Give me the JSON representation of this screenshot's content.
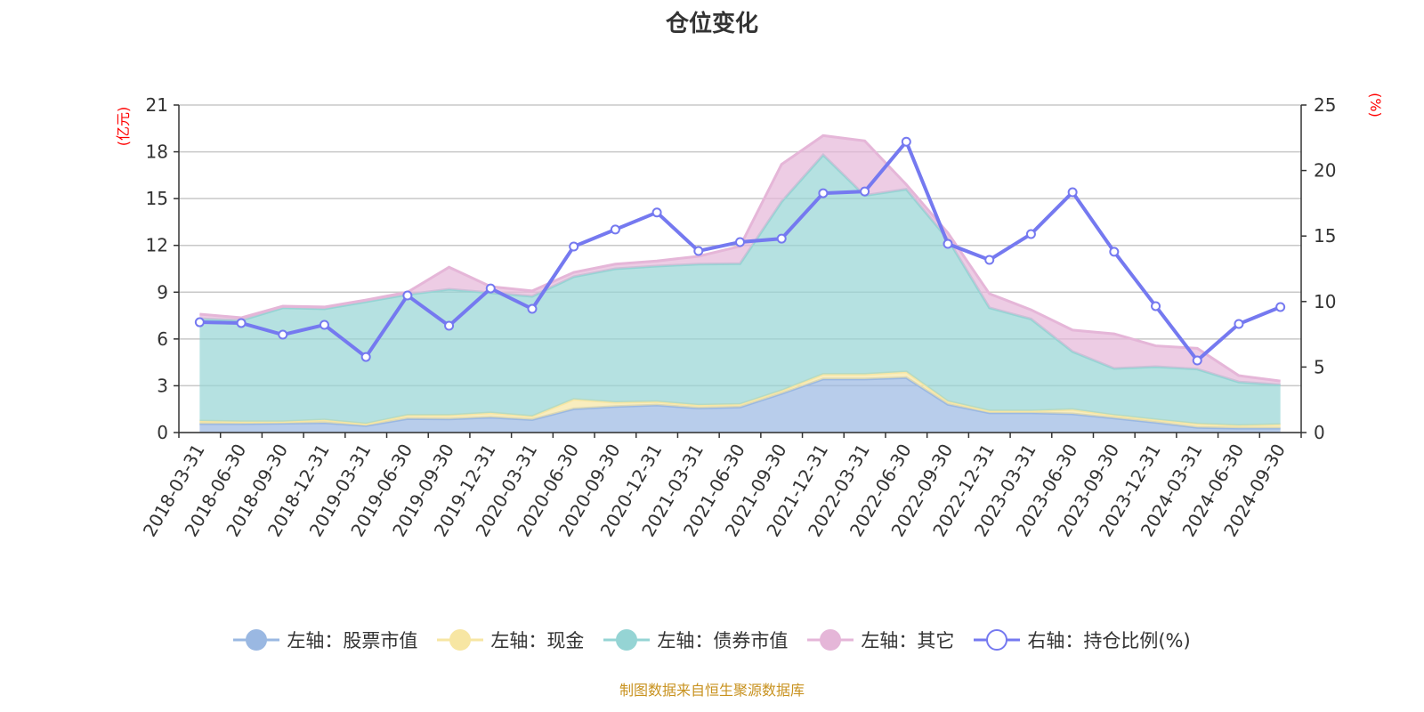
{
  "chart_data": {
    "type": "area",
    "title": "仓位变化",
    "left_axis": {
      "unit_label": "(亿元)",
      "range": [
        0,
        21
      ],
      "ticks": [
        0,
        3,
        6,
        9,
        12,
        15,
        18,
        21
      ]
    },
    "right_axis": {
      "unit_label": "(%)",
      "range": [
        0,
        25
      ],
      "ticks": [
        0,
        5,
        10,
        15,
        20,
        25
      ]
    },
    "grid": true,
    "legend_placement": "bottom",
    "categories": [
      "2018-03-31",
      "2018-06-30",
      "2018-09-30",
      "2018-12-31",
      "2019-03-31",
      "2019-06-30",
      "2019-09-30",
      "2019-12-31",
      "2020-03-31",
      "2020-06-30",
      "2020-09-30",
      "2020-12-31",
      "2021-03-31",
      "2021-06-30",
      "2021-09-30",
      "2021-12-31",
      "2022-03-31",
      "2022-06-30",
      "2022-09-30",
      "2022-12-31",
      "2023-03-31",
      "2023-06-30",
      "2023-09-30",
      "2023-12-31",
      "2024-03-31",
      "2024-06-30",
      "2024-09-30"
    ],
    "series": [
      {
        "name": "左轴：股票市值",
        "axis": "left",
        "stacked": true,
        "color": "#9ab8e2",
        "values": [
          0.56,
          0.56,
          0.59,
          0.63,
          0.44,
          0.89,
          0.87,
          0.98,
          0.83,
          1.52,
          1.67,
          1.76,
          1.57,
          1.63,
          2.5,
          3.43,
          3.43,
          3.52,
          1.81,
          1.26,
          1.26,
          1.2,
          0.93,
          0.65,
          0.33,
          0.28,
          0.28
        ]
      },
      {
        "name": "左轴：现金",
        "axis": "left",
        "stacked": true,
        "color": "#f7e6a3",
        "values": [
          0.18,
          0.14,
          0.11,
          0.18,
          0.12,
          0.22,
          0.24,
          0.28,
          0.21,
          0.61,
          0.27,
          0.22,
          0.19,
          0.18,
          0.19,
          0.31,
          0.31,
          0.37,
          0.19,
          0.13,
          0.13,
          0.28,
          0.18,
          0.18,
          0.23,
          0.18,
          0.24
        ]
      },
      {
        "name": "左轴：债券市值",
        "axis": "left",
        "stacked": true,
        "color": "#95d4d4",
        "values": [
          6.56,
          6.49,
          7.3,
          7.12,
          7.83,
          7.74,
          8.08,
          7.7,
          7.69,
          7.86,
          8.56,
          8.69,
          9.04,
          9.02,
          12.11,
          14.06,
          11.46,
          11.71,
          10.4,
          6.61,
          5.89,
          3.71,
          3.0,
          3.39,
          3.51,
          2.78,
          2.54
        ]
      },
      {
        "name": "左轴：其它",
        "axis": "left",
        "stacked": true,
        "color": "#e5b6d8",
        "values": [
          0.29,
          0.17,
          0.1,
          0.12,
          0.11,
          0.15,
          1.41,
          0.4,
          0.35,
          0.28,
          0.3,
          0.33,
          0.5,
          1.11,
          2.4,
          1.24,
          3.5,
          0.3,
          0.4,
          0.9,
          0.59,
          1.38,
          2.22,
          1.34,
          1.33,
          0.41,
          0.24
        ]
      },
      {
        "name": "右轴：持仓比例(%)",
        "axis": "right",
        "type": "line",
        "color": "#7579f0",
        "values": [
          8.42,
          8.36,
          7.47,
          8.22,
          5.77,
          10.46,
          8.15,
          11.0,
          9.44,
          14.2,
          15.5,
          16.8,
          13.86,
          14.54,
          14.8,
          18.27,
          18.4,
          22.2,
          14.4,
          13.18,
          15.15,
          18.34,
          13.8,
          9.65,
          5.5,
          8.29,
          9.58
        ]
      }
    ]
  },
  "footer": "制图数据来自恒生聚源数据库",
  "colors": {
    "axis_unit": "#ff0000",
    "footer": "#c8921f"
  }
}
